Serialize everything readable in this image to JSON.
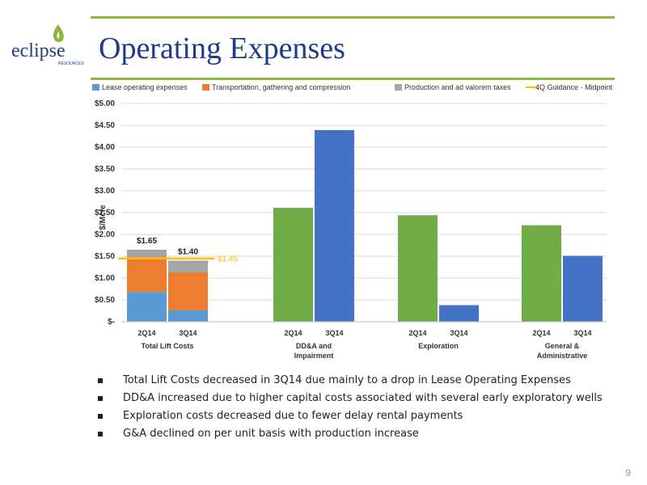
{
  "slide": {
    "title": "Operating Expenses",
    "page_number": "9"
  },
  "logo": {
    "wordmark": "eclipse",
    "subtext": "RESOURCES",
    "colors": {
      "green": "#8db63c",
      "text": "#1f3c88"
    }
  },
  "chart_data": {
    "type": "bar",
    "ylabel": "$/Mcfe",
    "ylim": [
      0,
      5
    ],
    "y_ticks": [
      "$-",
      "$0.50",
      "$1.00",
      "$1.50",
      "$2.00",
      "$2.50",
      "$3.00",
      "$3.50",
      "$4.00",
      "$4.50",
      "$5.00"
    ],
    "grid": true,
    "legend_position": "top",
    "legend": [
      {
        "name": "Lease operating expenses",
        "color": "#5b9bd5"
      },
      {
        "name": "Transportation, gathering and compression",
        "color": "#ed7d31"
      },
      {
        "name": "Production and ad valorem taxes",
        "color": "#a5a5a5"
      },
      {
        "name": "4Q Guidance - Midpoint",
        "color": "#ffc000"
      }
    ],
    "groups": [
      {
        "label": "Total Lift Costs",
        "type": "stacked",
        "categories": [
          "2Q14",
          "3Q14"
        ],
        "series": [
          {
            "name": "Lease operating expenses",
            "values": [
              0.68,
              0.26
            ]
          },
          {
            "name": "Transportation, gathering and compression",
            "values": [
              0.8,
              0.87
            ]
          },
          {
            "name": "Production and ad valorem taxes",
            "values": [
              0.17,
              0.27
            ]
          }
        ],
        "totals": [
          "$1.65",
          "$1.40"
        ],
        "guidance": {
          "name": "4Q Guidance - Midpoint",
          "value": 1.45,
          "label": "$1.45"
        }
      },
      {
        "label": "DD&A and Impairment",
        "type": "single",
        "categories": [
          "2Q14",
          "3Q14"
        ],
        "values": [
          2.61,
          4.39
        ]
      },
      {
        "label": "Exploration",
        "type": "single",
        "categories": [
          "2Q14",
          "3Q14"
        ],
        "values": [
          2.44,
          0.38
        ]
      },
      {
        "label": "General & Administrative",
        "type": "single",
        "categories": [
          "2Q14",
          "3Q14"
        ],
        "values": [
          2.21,
          1.51
        ]
      }
    ],
    "single_colors": [
      "#70ad47",
      "#4472c4"
    ]
  },
  "bullets": [
    "Total Lift Costs decreased in 3Q14 due mainly to a drop in Lease Operating Expenses",
    "DD&A increased due to higher capital costs associated with several early exploratory wells",
    "Exploration costs decreased due to fewer delay rental payments",
    "G&A declined on per unit basis with production increase"
  ]
}
